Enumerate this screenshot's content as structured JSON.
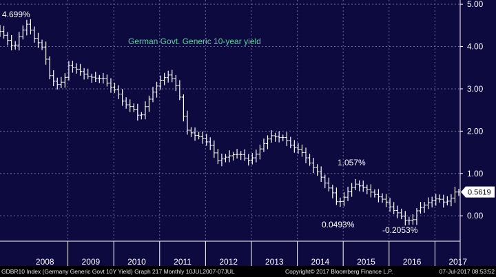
{
  "chart_data": {
    "type": "bar",
    "subtype": "ohlc",
    "title": "German Govt. Generic 10-year yield",
    "x_labels": [
      "2008",
      "2009",
      "2010",
      "2011",
      "2012",
      "2013",
      "2014",
      "2015",
      "2016",
      "2017"
    ],
    "ylim": [
      -0.6,
      5.1
    ],
    "yticks": [
      "5.00",
      "4.00",
      "3.00",
      "2.00",
      "1.00",
      "0.00"
    ],
    "last_value_label": "0.5619",
    "grid": true,
    "colors": {
      "background": "#0c0a3e",
      "bars": "#ffffff",
      "grid": "#6c6a9a",
      "title": "#5fd3a0",
      "text": "#ffffff"
    },
    "annotations": [
      {
        "text": "4.699%",
        "x": 2007.6,
        "y": 4.699
      },
      {
        "text": "1.057%",
        "x": 2015.2,
        "y": 1.057
      },
      {
        "text": "0.0493%",
        "x": 2014.9,
        "y": 0.0493
      },
      {
        "text": "-0.2053%",
        "x": 2016.4,
        "y": -0.2053
      }
    ],
    "anchors": [
      [
        2007.52,
        4.45
      ],
      [
        2007.7,
        4.25
      ],
      [
        2007.9,
        3.95
      ],
      [
        2008.05,
        4.3
      ],
      [
        2008.2,
        4.55
      ],
      [
        2008.35,
        4.2
      ],
      [
        2008.55,
        3.95
      ],
      [
        2008.7,
        3.25
      ],
      [
        2008.85,
        3.1
      ],
      [
        2009.0,
        3.2
      ],
      [
        2009.1,
        3.55
      ],
      [
        2009.3,
        3.45
      ],
      [
        2009.5,
        3.3
      ],
      [
        2009.7,
        3.25
      ],
      [
        2009.85,
        3.25
      ],
      [
        2010.0,
        3.05
      ],
      [
        2010.15,
        2.95
      ],
      [
        2010.3,
        2.65
      ],
      [
        2010.5,
        2.55
      ],
      [
        2010.65,
        2.3
      ],
      [
        2010.8,
        2.65
      ],
      [
        2010.95,
        2.95
      ],
      [
        2011.1,
        3.2
      ],
      [
        2011.3,
        3.35
      ],
      [
        2011.45,
        3.05
      ],
      [
        2011.55,
        2.7
      ],
      [
        2011.65,
        2.05
      ],
      [
        2011.85,
        1.9
      ],
      [
        2012.0,
        1.85
      ],
      [
        2012.2,
        1.65
      ],
      [
        2012.35,
        1.3
      ],
      [
        2012.55,
        1.4
      ],
      [
        2012.7,
        1.45
      ],
      [
        2012.85,
        1.45
      ],
      [
        2013.0,
        1.3
      ],
      [
        2013.15,
        1.4
      ],
      [
        2013.35,
        1.7
      ],
      [
        2013.5,
        1.9
      ],
      [
        2013.65,
        1.85
      ],
      [
        2013.8,
        1.85
      ],
      [
        2013.95,
        1.65
      ],
      [
        2014.15,
        1.55
      ],
      [
        2014.35,
        1.25
      ],
      [
        2014.55,
        1.0
      ],
      [
        2014.7,
        0.75
      ],
      [
        2014.85,
        0.55
      ],
      [
        2014.95,
        0.3
      ],
      [
        2015.05,
        0.35
      ],
      [
        2015.2,
        0.6
      ],
      [
        2015.35,
        0.75
      ],
      [
        2015.55,
        0.65
      ],
      [
        2015.7,
        0.55
      ],
      [
        2015.85,
        0.45
      ],
      [
        2016.0,
        0.35
      ],
      [
        2016.15,
        0.15
      ],
      [
        2016.3,
        0.05
      ],
      [
        2016.45,
        -0.12
      ],
      [
        2016.6,
        -0.1
      ],
      [
        2016.7,
        0.15
      ],
      [
        2016.85,
        0.25
      ],
      [
        2017.0,
        0.35
      ],
      [
        2017.15,
        0.42
      ],
      [
        2017.3,
        0.3
      ],
      [
        2017.45,
        0.43
      ],
      [
        2017.52,
        0.5619
      ]
    ]
  },
  "footer": {
    "left": "GDBR10 Index (Germany Generic Govt 10Y Yield) Graph 217  Monthly 10JUL2007-07JUL",
    "center": "Copyright© 2017 Bloomberg Finance L.P.",
    "right": "07-Jul-2017 08:53:52"
  }
}
